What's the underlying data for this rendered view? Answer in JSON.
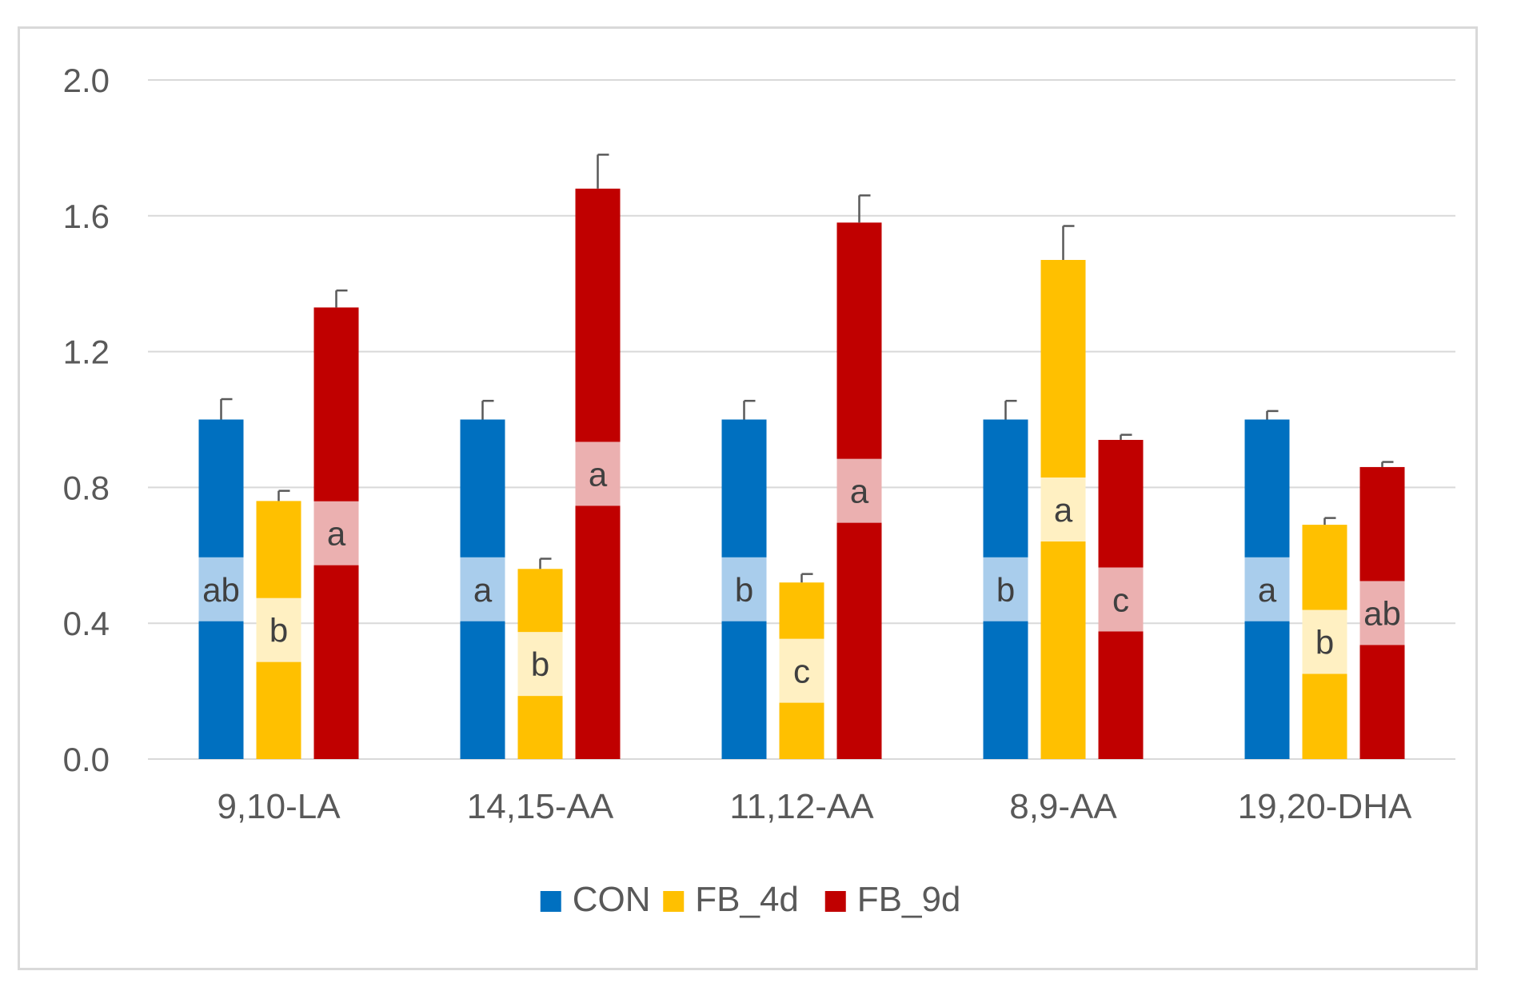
{
  "chart_data": {
    "type": "bar",
    "title": "",
    "xlabel": "",
    "ylabel": "",
    "ylim": [
      0,
      2.0
    ],
    "yticks": [
      "0.0",
      "0.4",
      "0.8",
      "1.2",
      "1.6",
      "2.0"
    ],
    "ytick_values": [
      0,
      0.4,
      0.8,
      1.2,
      1.6,
      2.0
    ],
    "grid": true,
    "legend_position": "bottom",
    "categories": [
      "9,10-LA",
      "14,15-AA",
      "11,12-AA",
      "8,9-AA",
      "19,20-DHA"
    ],
    "series": [
      {
        "name": "CON",
        "color": "#0070c0",
        "label_band_color": "#a9cdec",
        "values": [
          1.0,
          1.0,
          1.0,
          1.0,
          1.0
        ],
        "errors": [
          0.06,
          0.055,
          0.055,
          0.055,
          0.025
        ],
        "significance": [
          "ab",
          "a",
          "b",
          "b",
          "a"
        ]
      },
      {
        "name": "FB_4d",
        "color": "#ffc000",
        "label_band_color": "#fff0c2",
        "values": [
          0.76,
          0.56,
          0.52,
          1.47,
          0.69
        ],
        "errors": [
          0.03,
          0.03,
          0.025,
          0.1,
          0.02
        ],
        "significance": [
          "b",
          "b",
          "c",
          "a",
          "b"
        ]
      },
      {
        "name": "FB_9d",
        "color": "#c00000",
        "label_band_color": "#ebb0b0",
        "values": [
          1.33,
          1.68,
          1.58,
          0.94,
          0.86
        ],
        "errors": [
          0.05,
          0.1,
          0.08,
          0.015,
          0.015
        ],
        "significance": [
          "a",
          "a",
          "a",
          "c",
          "ab"
        ]
      }
    ]
  }
}
